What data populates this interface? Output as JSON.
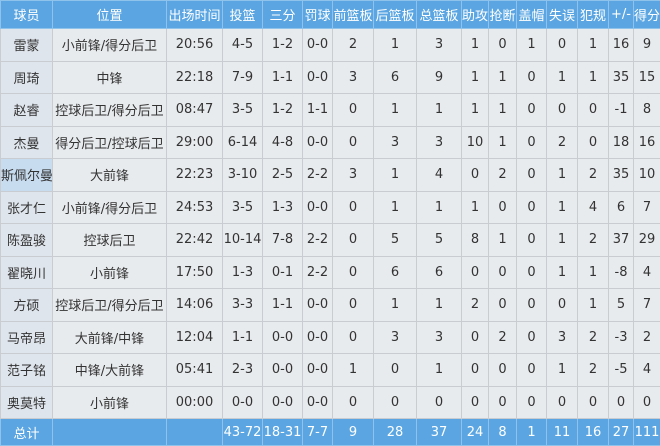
{
  "headers": [
    "球员",
    "位置",
    "出场时间",
    "投篮",
    "三分",
    "罚球",
    "前篮板",
    "后篮板",
    "总篮板",
    "助攻",
    "抢断",
    "盖帽",
    "失误",
    "犯规",
    "+/-",
    "得分"
  ],
  "rows": [
    [
      "雷蒙",
      "小前锋/得分后卫",
      "20:56",
      "4-5",
      "1-2",
      "0-0",
      "2",
      "1",
      "3",
      "1",
      "0",
      "1",
      "0",
      "1",
      "16",
      "9"
    ],
    [
      "周琦",
      "中锋",
      "22:18",
      "7-9",
      "1-1",
      "0-0",
      "3",
      "6",
      "9",
      "1",
      "1",
      "0",
      "1",
      "1",
      "35",
      "15"
    ],
    [
      "赵睿",
      "控球后卫/得分后卫",
      "08:47",
      "3-5",
      "1-2",
      "1-1",
      "0",
      "1",
      "1",
      "1",
      "1",
      "0",
      "0",
      "0",
      "-1",
      "8"
    ],
    [
      "杰曼",
      "得分后卫/控球后卫",
      "29:00",
      "6-14",
      "4-8",
      "0-0",
      "0",
      "3",
      "3",
      "10",
      "1",
      "0",
      "2",
      "0",
      "18",
      "16"
    ],
    [
      "斯佩尔曼",
      "大前锋",
      "22:23",
      "3-10",
      "2-5",
      "2-2",
      "3",
      "1",
      "4",
      "0",
      "2",
      "0",
      "1",
      "2",
      "35",
      "10"
    ],
    [
      "张才仁",
      "小前锋/得分后卫",
      "24:53",
      "3-5",
      "1-3",
      "0-0",
      "0",
      "1",
      "1",
      "1",
      "0",
      "0",
      "1",
      "4",
      "6",
      "7"
    ],
    [
      "陈盈骏",
      "控球后卫",
      "22:42",
      "10-14",
      "7-8",
      "2-2",
      "0",
      "5",
      "5",
      "8",
      "1",
      "0",
      "1",
      "2",
      "37",
      "29"
    ],
    [
      "翟晓川",
      "小前锋",
      "17:50",
      "1-3",
      "0-1",
      "2-2",
      "0",
      "6",
      "6",
      "0",
      "0",
      "0",
      "1",
      "1",
      "-8",
      "4"
    ],
    [
      "方硕",
      "控球后卫/得分后卫",
      "14:06",
      "3-3",
      "1-1",
      "0-0",
      "0",
      "1",
      "1",
      "2",
      "0",
      "0",
      "0",
      "1",
      "5",
      "7"
    ],
    [
      "马帝昂",
      "大前锋/中锋",
      "12:04",
      "1-1",
      "0-0",
      "0-0",
      "0",
      "3",
      "3",
      "0",
      "2",
      "0",
      "3",
      "2",
      "-3",
      "2"
    ],
    [
      "范子铭",
      "中锋/大前锋",
      "05:41",
      "2-3",
      "0-0",
      "0-0",
      "1",
      "0",
      "1",
      "0",
      "0",
      "0",
      "1",
      "2",
      "-5",
      "4"
    ],
    [
      "奥莫特",
      "小前锋",
      "00:00",
      "0-0",
      "0-0",
      "0-0",
      "0",
      "0",
      "0",
      "0",
      "0",
      "0",
      "0",
      "0",
      "0",
      "0"
    ]
  ],
  "totals": [
    "总计",
    "",
    "",
    "43-72",
    "18-31",
    "7-7",
    "9",
    "28",
    "37",
    "24",
    "8",
    "1",
    "11",
    "16",
    "27",
    "111"
  ],
  "highlighted_row": 4,
  "colors": {
    "header_bg": "#5ba6e2",
    "row_bg": "#e8ebee",
    "highlight": "#c8dcf0"
  }
}
